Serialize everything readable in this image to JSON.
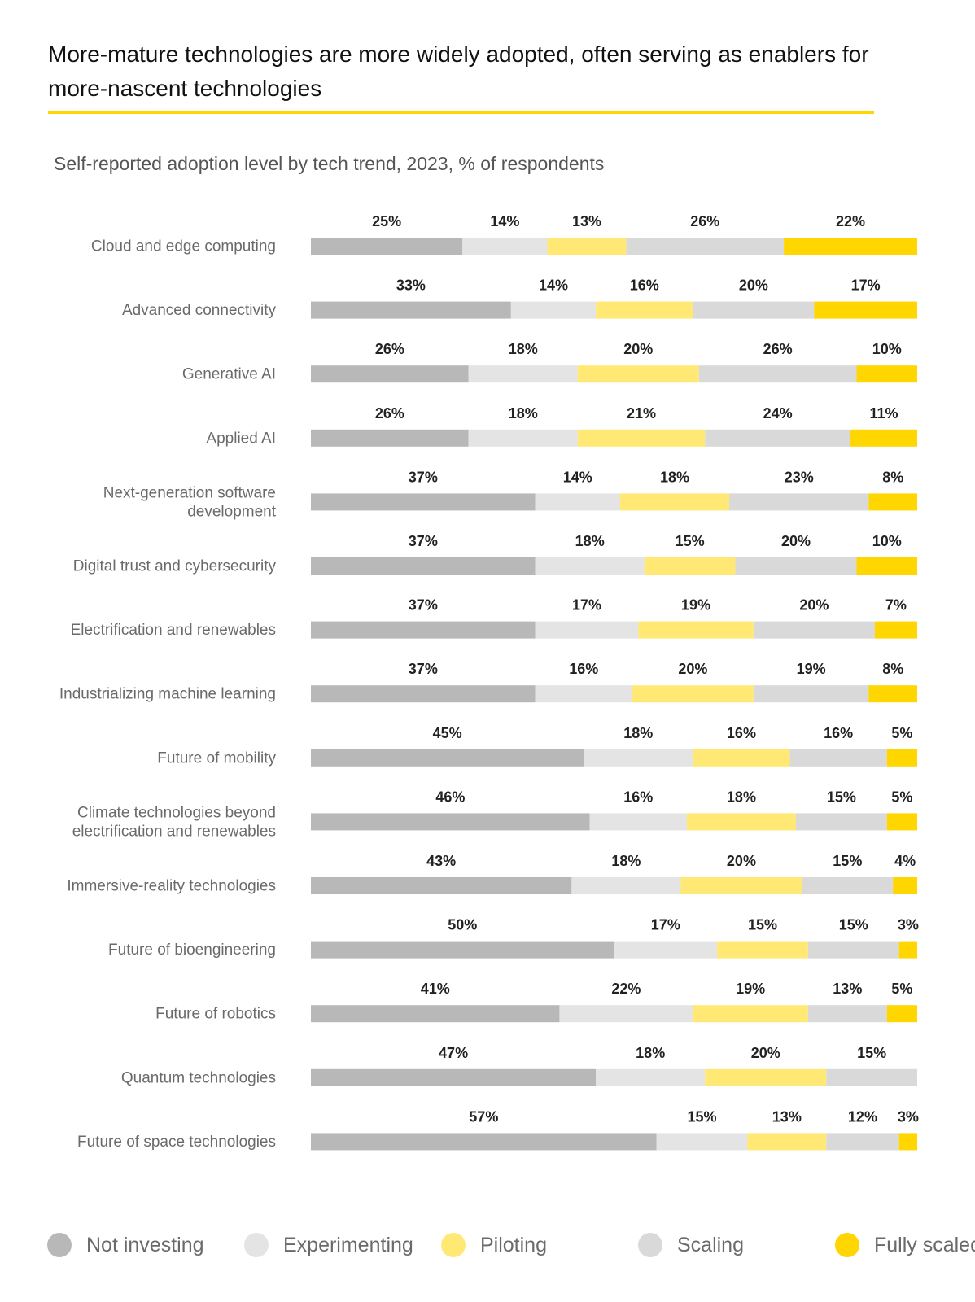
{
  "title": "More-mature technologies are more widely adopted, often serving as enablers for more-nascent technologies",
  "subtitle": "Self-reported adoption level by tech trend, 2023, % of respondents",
  "chart_data": {
    "type": "bar",
    "orientation": "horizontal",
    "stacked": true,
    "normalized": true,
    "unit": "%",
    "legend_position": "bottom",
    "grid": false,
    "categories": [
      "Cloud and edge computing",
      "Advanced connectivity",
      "Generative AI",
      "Applied AI",
      "Next-generation software development",
      "Digital trust and cybersecurity",
      "Electrification and renewables",
      "Industrializing machine learning",
      "Future of mobility",
      "Climate technologies beyond electrification and renewables",
      "Immersive-reality technologies",
      "Future of bioengineering",
      "Future of robotics",
      "Quantum technologies",
      "Future of space technologies"
    ],
    "category_lines": [
      [
        "Cloud and edge computing"
      ],
      [
        "Advanced connectivity"
      ],
      [
        "Generative AI"
      ],
      [
        "Applied AI"
      ],
      [
        "Next-generation software",
        "development"
      ],
      [
        "Digital trust and cybersecurity"
      ],
      [
        "Electrification and renewables"
      ],
      [
        "Industrializing machine learning"
      ],
      [
        "Future of mobility"
      ],
      [
        "Climate technologies beyond",
        "electrification and renewables"
      ],
      [
        "Immersive-reality technologies"
      ],
      [
        "Future of bioengineering"
      ],
      [
        "Future of robotics"
      ],
      [
        "Quantum technologies"
      ],
      [
        "Future of space technologies"
      ]
    ],
    "series": [
      {
        "name": "Not investing",
        "color": "#b8b8b8",
        "values": [
          25,
          33,
          26,
          26,
          37,
          37,
          37,
          37,
          45,
          46,
          43,
          50,
          41,
          47,
          57
        ]
      },
      {
        "name": "Experimenting",
        "color": "#e4e4e4",
        "values": [
          14,
          14,
          18,
          18,
          14,
          18,
          17,
          16,
          18,
          16,
          18,
          17,
          22,
          18,
          15
        ]
      },
      {
        "name": "Piloting",
        "color": "#ffe974",
        "values": [
          13,
          16,
          20,
          21,
          18,
          15,
          19,
          20,
          16,
          18,
          20,
          15,
          19,
          20,
          13
        ]
      },
      {
        "name": "Scaling",
        "color": "#d9d9d9",
        "values": [
          26,
          20,
          26,
          24,
          23,
          20,
          20,
          19,
          16,
          15,
          15,
          15,
          13,
          15,
          12
        ]
      },
      {
        "name": "Fully scaled",
        "color": "#ffd600",
        "values": [
          22,
          17,
          10,
          11,
          8,
          10,
          7,
          8,
          5,
          5,
          4,
          3,
          5,
          0,
          3
        ]
      }
    ]
  }
}
